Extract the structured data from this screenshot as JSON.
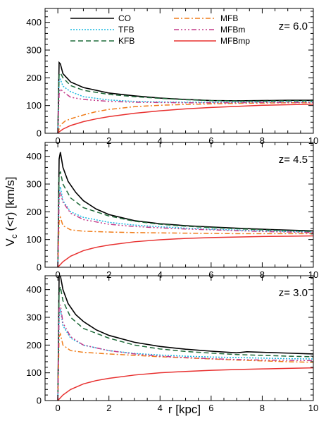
{
  "chart_data": {
    "type": "line",
    "ylabel_main": "V",
    "ylabel_sub": "c",
    "ylabel_rest": " (<r) [km/s]",
    "xlabel": "r [kpc]",
    "xlim": [
      -0.5,
      10
    ],
    "ylim": [
      0,
      450
    ],
    "xticks": [
      "0",
      "2",
      "4",
      "6",
      "8",
      "10"
    ],
    "yticks": [
      "0",
      "100",
      "200",
      "300",
      "400"
    ],
    "legend": [
      {
        "name": "CO",
        "color": "#000000",
        "dash": ""
      },
      {
        "name": "TFB",
        "color": "#1ab8e0",
        "dash": "2,2"
      },
      {
        "name": "KFB",
        "color": "#1f6b3a",
        "dash": "7,4"
      },
      {
        "name": "MFB",
        "color": "#f07d1a",
        "dash": "7,3,2,3"
      },
      {
        "name": "MFBm",
        "color": "#c43c8a",
        "dash": "7,3,2,3,2,3,2,3"
      },
      {
        "name": "MFBmp",
        "color": "#e8302f",
        "dash": ""
      }
    ],
    "panels": [
      {
        "label": "z= 6.0",
        "series": [
          {
            "name": "CO",
            "x": [
              0,
              0.05,
              0.1,
              0.2,
              0.5,
              1,
              2,
              3,
              4,
              5,
              6,
              7,
              8,
              9,
              10
            ],
            "y": [
              0,
              255,
              250,
              215,
              185,
              165,
              145,
              135,
              127,
              122,
              118,
              117,
              118,
              119,
              119
            ]
          },
          {
            "name": "TFB",
            "x": [
              0,
              0.05,
              0.1,
              0.2,
              0.5,
              1,
              2,
              3,
              4,
              5,
              6,
              7,
              8,
              9,
              10
            ],
            "y": [
              0,
              190,
              195,
              170,
              150,
              132,
              120,
              115,
              113,
              112,
              112,
              112,
              113,
              113,
              113
            ]
          },
          {
            "name": "KFB",
            "x": [
              0,
              0.05,
              0.1,
              0.2,
              0.5,
              1,
              2,
              3,
              4,
              5,
              6,
              7,
              8,
              9,
              10
            ],
            "y": [
              0,
              210,
              218,
              200,
              172,
              155,
              140,
              132,
              126,
              121,
              118,
              116,
              116,
              117,
              117
            ]
          },
          {
            "name": "MFB",
            "x": [
              0,
              0.1,
              0.3,
              0.6,
              1,
              1.5,
              2,
              3,
              4,
              5,
              6,
              7,
              8,
              9,
              10
            ],
            "y": [
              0,
              30,
              45,
              55,
              66,
              78,
              86,
              96,
              101,
              104,
              106,
              108,
              109,
              110,
              110
            ]
          },
          {
            "name": "MFBm",
            "x": [
              0,
              0.05,
              0.1,
              0.2,
              0.5,
              1,
              2,
              3,
              4,
              5,
              6,
              7,
              8,
              9,
              10
            ],
            "y": [
              0,
              140,
              160,
              150,
              130,
              122,
              115,
              112,
              111,
              110,
              110,
              110,
              111,
              111,
              111
            ]
          },
          {
            "name": "MFBmp",
            "x": [
              0,
              0.05,
              0.2,
              0.5,
              1,
              1.5,
              2,
              3,
              4,
              5,
              6,
              7,
              8,
              9,
              10
            ],
            "y": [
              0,
              5,
              15,
              28,
              42,
              52,
              60,
              72,
              81,
              88,
              93,
              97,
              101,
              103,
              105
            ]
          }
        ]
      },
      {
        "label": "z= 4.5",
        "series": [
          {
            "name": "CO",
            "x": [
              0,
              0.05,
              0.1,
              0.2,
              0.4,
              0.7,
              1,
              1.5,
              2,
              3,
              4,
              5,
              6,
              7,
              8,
              9,
              10
            ],
            "y": [
              0,
              390,
              415,
              360,
              310,
              270,
              240,
              210,
              190,
              168,
              157,
              150,
              145,
              141,
              137,
              134,
              131
            ]
          },
          {
            "name": "TFB",
            "x": [
              0,
              0.05,
              0.1,
              0.2,
              0.5,
              1,
              2,
              3,
              4,
              5,
              6,
              7,
              8,
              9,
              10
            ],
            "y": [
              0,
              270,
              290,
              240,
              200,
              180,
              162,
              152,
              146,
              141,
              137,
              134,
              131,
              129,
              127
            ]
          },
          {
            "name": "KFB",
            "x": [
              0,
              0.05,
              0.1,
              0.2,
              0.5,
              1,
              2,
              3,
              4,
              5,
              6,
              7,
              8,
              9,
              10
            ],
            "y": [
              0,
              330,
              345,
              300,
              250,
              215,
              185,
              166,
              155,
              148,
              143,
              139,
              135,
              132,
              129
            ]
          },
          {
            "name": "MFB",
            "x": [
              0,
              0.05,
              0.1,
              0.2,
              0.5,
              1,
              2,
              3,
              4,
              5,
              6,
              7,
              8,
              9,
              10
            ],
            "y": [
              0,
              165,
              180,
              150,
              135,
              130,
              127,
              125,
              124,
              123,
              122,
              121,
              121,
              121,
              121
            ]
          },
          {
            "name": "MFBm",
            "x": [
              0,
              0.05,
              0.1,
              0.2,
              0.5,
              1,
              2,
              3,
              4,
              5,
              6,
              7,
              8,
              9,
              10
            ],
            "y": [
              0,
              250,
              270,
              235,
              195,
              172,
              155,
              147,
              142,
              138,
              135,
              132,
              129,
              127,
              125
            ]
          },
          {
            "name": "MFBmp",
            "x": [
              0,
              0.05,
              0.2,
              0.5,
              1,
              1.5,
              2,
              3,
              4,
              5,
              6,
              7,
              8,
              9,
              10
            ],
            "y": [
              0,
              5,
              20,
              40,
              60,
              72,
              80,
              92,
              99,
              104,
              107,
              109,
              111,
              112,
              113
            ]
          }
        ]
      },
      {
        "label": "z= 3.0",
        "series": [
          {
            "name": "CO",
            "x": [
              0,
              0.05,
              0.1,
              0.2,
              0.4,
              0.7,
              1,
              1.5,
              2,
              3,
              4,
              5,
              6,
              7,
              7.4,
              8,
              9,
              10
            ],
            "y": [
              0,
              450,
              450,
              400,
              350,
              310,
              285,
              255,
              235,
              210,
              195,
              185,
              178,
              172,
              176,
              174,
              171,
              168
            ]
          },
          {
            "name": "TFB",
            "x": [
              0,
              0.05,
              0.1,
              0.2,
              0.5,
              1,
              2,
              3,
              4,
              5,
              6,
              7,
              8,
              9,
              10
            ],
            "y": [
              0,
              300,
              330,
              270,
              225,
              200,
              180,
              170,
              164,
              160,
              157,
              155,
              153,
              151,
              150
            ]
          },
          {
            "name": "KFB",
            "x": [
              0,
              0.05,
              0.1,
              0.2,
              0.5,
              1,
              2,
              3,
              4,
              5,
              6,
              7,
              8,
              9,
              10
            ],
            "y": [
              0,
              390,
              410,
              360,
              300,
              260,
              225,
              200,
              186,
              177,
              171,
              166,
              163,
              160,
              158
            ]
          },
          {
            "name": "MFB",
            "x": [
              0,
              0.05,
              0.1,
              0.2,
              0.5,
              1,
              2,
              3,
              4,
              5,
              6,
              7,
              8,
              9,
              10
            ],
            "y": [
              0,
              230,
              240,
              200,
              180,
              174,
              168,
              163,
              158,
              154,
              150,
              146,
              143,
              140,
              138
            ]
          },
          {
            "name": "MFBm",
            "x": [
              0,
              0.05,
              0.1,
              0.2,
              0.5,
              1,
              2,
              3,
              4,
              5,
              6,
              7,
              8,
              9,
              10
            ],
            "y": [
              0,
              330,
              345,
              280,
              230,
              200,
              180,
              168,
              160,
              155,
              151,
              148,
              146,
              145,
              144
            ]
          },
          {
            "name": "MFBmp",
            "x": [
              0,
              0.05,
              0.2,
              0.5,
              1,
              1.5,
              2,
              3,
              4,
              5,
              6,
              7,
              8,
              9,
              10
            ],
            "y": [
              0,
              5,
              20,
              40,
              60,
              72,
              80,
              92,
              100,
              105,
              109,
              112,
              114,
              116,
              118
            ]
          }
        ]
      }
    ]
  }
}
